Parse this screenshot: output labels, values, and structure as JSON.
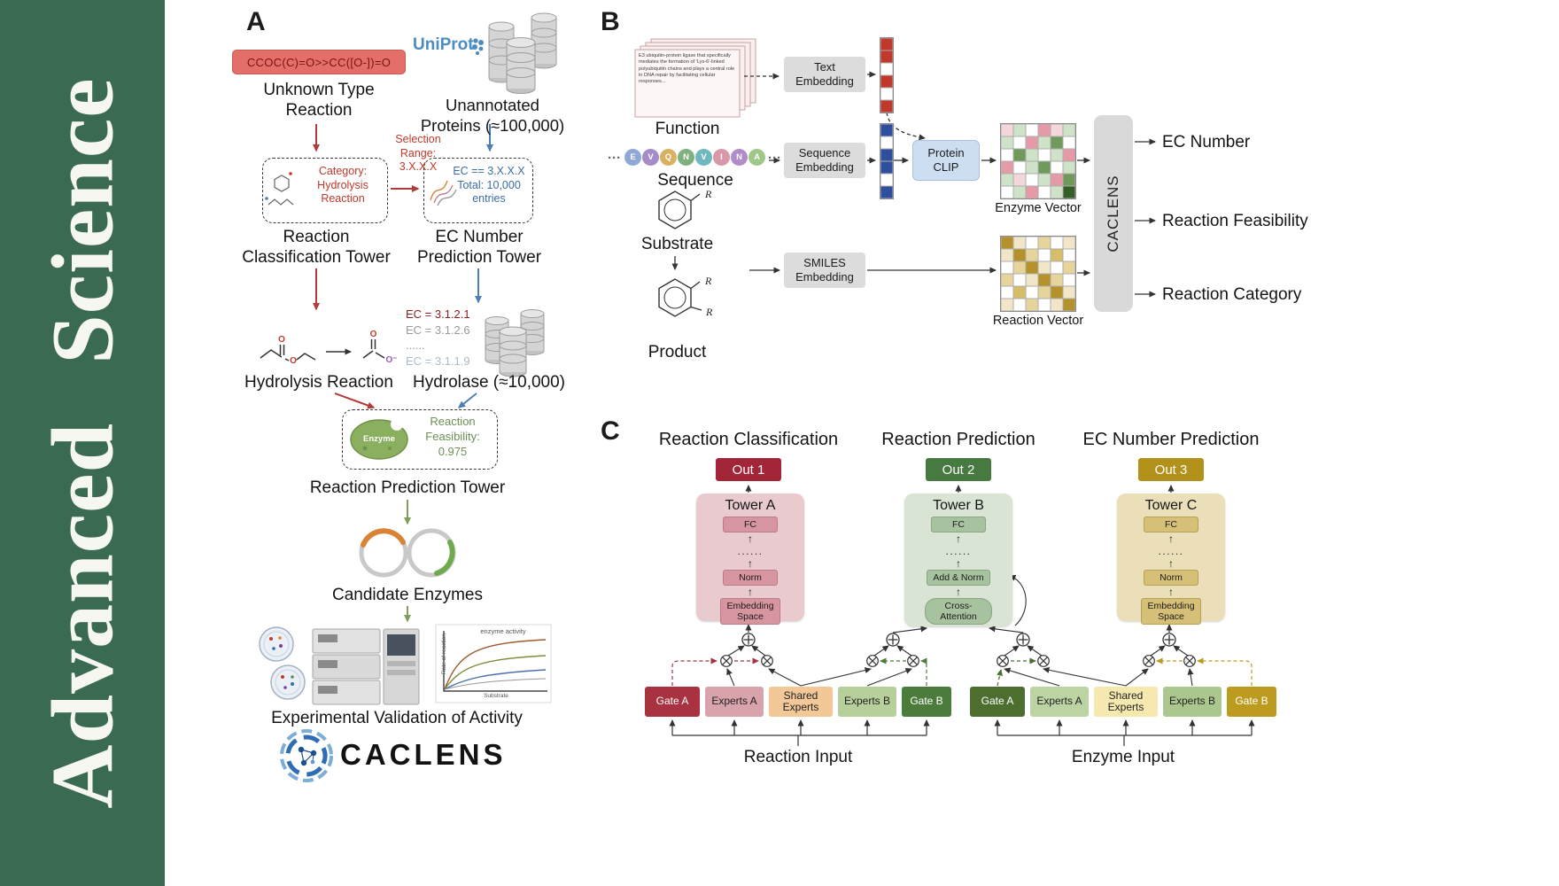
{
  "journal": {
    "name": "Advanced Science"
  },
  "panelA": {
    "label": "A",
    "smiles": "CCOC(C)=O>>CC([O-])=O",
    "unknown_reaction": "Unknown Type\nReaction",
    "uniprot": "UniProt",
    "unannotated": "Unannotated\nProteins (≈100,000)",
    "selection_range": "Selection\nRange:\n3.X.X.X",
    "category_box": "Category:\nHydrolysis\nReaction",
    "ec_range_box": "EC == 3.X.X.X\nTotal: 10,000\nentries",
    "classification_tower": "Reaction\nClassification Tower",
    "ec_tower": "EC Number\nPrediction Tower",
    "ec_list": [
      {
        "text": "EC = 3.1.2.1",
        "color": "#8f1d22"
      },
      {
        "text": "EC = 3.1.2.6",
        "color": "#9a9a9a"
      },
      {
        "text": "......",
        "color": "#9a9a9a"
      },
      {
        "text": "EC = 3.1.1.9",
        "color": "#a9bccd"
      }
    ],
    "hydrolysis": "Hydrolysis Reaction",
    "hydrolase": "Hydrolase (≈10,000)",
    "enzyme_label": "Enzyme",
    "feasibility": "Reaction\nFeasibility:\n0.975",
    "prediction_tower": "Reaction Prediction Tower",
    "candidates": "Candidate Enzymes",
    "validation": "Experimental Validation of Activity",
    "brand": "CACLENS",
    "atoms": {
      "o": "O",
      "o_minus": "O⁻"
    },
    "plot": {
      "top_label": "enzyme activity",
      "y_label": "Rate of reaction",
      "x_label": "Substrate"
    }
  },
  "panelB": {
    "label": "B",
    "function_doc": "E3 ubiquitin-protein ligase that specifically mediates the formation of 'Lys-6'-linked polyubiquitin chains and plays a central role in DNA repair by facilitating cellular responses...",
    "function_label": "Function",
    "sequence": {
      "ellipsis": "···",
      "letters": [
        "E",
        "V",
        "Q",
        "N",
        "V",
        "I",
        "N",
        "A"
      ],
      "colors": [
        "#8fa8d8",
        "#a58cc8",
        "#d8b060",
        "#7fb07f",
        "#6fb8c0",
        "#d898a8",
        "#b08cc8",
        "#9fc888"
      ]
    },
    "sequence_label": "Sequence",
    "substrate_label": "Substrate",
    "product_label": "Product",
    "r_group": "R",
    "text_embedding": "Text\nEmbedding",
    "sequence_embedding": "Sequence\nEmbedding",
    "smiles_embedding": "SMILES\nEmbedding",
    "protein_clip": "Protein\nCLIP",
    "enzyme_vector_label": "Enzyme Vector",
    "reaction_vector_label": "Reaction Vector",
    "caclens": "CACLENS",
    "outputs": [
      "EC Number",
      "Reaction Feasibility",
      "Reaction Category"
    ],
    "text_vector": [
      "#c0392b",
      "#c0392b",
      "#ffffff",
      "#c0392b",
      "#ffffff",
      "#c0392b"
    ],
    "sequence_vector": [
      "#2e4f9e",
      "#ffffff",
      "#2e4f9e",
      "#2e4f9e",
      "#ffffff",
      "#2e4f9e"
    ],
    "enzyme_matrix": [
      [
        "#f4d7db",
        "#cfe3c8",
        "#ffffff",
        "#e59aa8",
        "#f4d7db",
        "#cfe3c8"
      ],
      [
        "#cfe3c8",
        "#ffffff",
        "#e59aa8",
        "#cfe3c8",
        "#6f9a5c",
        "#ffffff"
      ],
      [
        "#ffffff",
        "#6f9a5c",
        "#cfe3c8",
        "#ffffff",
        "#cfe3c8",
        "#e59aa8"
      ],
      [
        "#e59aa8",
        "#ffffff",
        "#cfe3c8",
        "#6f9a5c",
        "#ffffff",
        "#cfe3c8"
      ],
      [
        "#cfe3c8",
        "#f4d7db",
        "#ffffff",
        "#cfe3c8",
        "#e59aa8",
        "#6f9a5c"
      ],
      [
        "#ffffff",
        "#cfe3c8",
        "#e59aa8",
        "#ffffff",
        "#cfe3c8",
        "#355e28"
      ]
    ],
    "reaction_matrix": [
      [
        "#b5912c",
        "#f1e7c8",
        "#ffffff",
        "#e6d49a",
        "#ffffff",
        "#f1e7c8"
      ],
      [
        "#f1e7c8",
        "#b5912c",
        "#e6d49a",
        "#ffffff",
        "#d5bd6a",
        "#ffffff"
      ],
      [
        "#ffffff",
        "#e6d49a",
        "#b5912c",
        "#f1e7c8",
        "#ffffff",
        "#e6d49a"
      ],
      [
        "#e6d49a",
        "#ffffff",
        "#f1e7c8",
        "#b5912c",
        "#e6d49a",
        "#ffffff"
      ],
      [
        "#ffffff",
        "#d5bd6a",
        "#ffffff",
        "#e6d49a",
        "#b5912c",
        "#f1e7c8"
      ],
      [
        "#f1e7c8",
        "#ffffff",
        "#e6d49a",
        "#ffffff",
        "#f1e7c8",
        "#b5912c"
      ]
    ]
  },
  "panelC": {
    "label": "C",
    "towers": [
      {
        "title": "Reaction Classification",
        "out": "Out 1",
        "out_bg": "#a32638",
        "name": "Tower A",
        "bg": "#e8cacf",
        "block_bg": "#d795a0",
        "block_border": "#bb7b87",
        "blocks": [
          {
            "label": "FC"
          },
          {
            "label": "......",
            "type": "dots"
          },
          {
            "label": "Norm"
          },
          {
            "label": "Embedding\nSpace",
            "type": "tall"
          }
        ]
      },
      {
        "title": "Reaction Prediction",
        "out": "Out 2",
        "out_bg": "#477a41",
        "name": "Tower B",
        "bg": "#d9e4d4",
        "block_bg": "#a6c29e",
        "block_border": "#88a57f",
        "blocks": [
          {
            "label": "FC"
          },
          {
            "label": "......",
            "type": "dots"
          },
          {
            "label": "Add & Norm"
          },
          {
            "label": "Cross-\nAttention",
            "type": "oval"
          }
        ]
      },
      {
        "title": "EC Number Prediction",
        "out": "Out 3",
        "out_bg": "#b3921c",
        "name": "Tower C",
        "bg": "#eadfb9",
        "block_bg": "#d6bf76",
        "block_border": "#b6a156",
        "blocks": [
          {
            "label": "FC"
          },
          {
            "label": "......",
            "type": "dots"
          },
          {
            "label": "Norm"
          },
          {
            "label": "Embedding\nSpace",
            "type": "tall"
          }
        ]
      }
    ],
    "expert_groups": [
      {
        "input_label": "Reaction Input",
        "boxes": [
          {
            "label": "Gate A",
            "bg": "#a83240",
            "fg": "#ffffff"
          },
          {
            "label": "Experts A",
            "bg": "#d9a3ab",
            "fg": "#222222"
          },
          {
            "label": "Shared\nExperts",
            "bg": "#f2c898",
            "fg": "#222222"
          },
          {
            "label": "Experts B",
            "bg": "#b7cf9b",
            "fg": "#222222"
          },
          {
            "label": "Gate B",
            "bg": "#4c7c3c",
            "fg": "#ffffff"
          }
        ]
      },
      {
        "input_label": "Enzyme Input",
        "boxes": [
          {
            "label": "Gate A",
            "bg": "#4c6e2f",
            "fg": "#ffffff"
          },
          {
            "label": "Experts A",
            "bg": "#bcd4a4",
            "fg": "#222222"
          },
          {
            "label": "Shared\nExperts",
            "bg": "#f5e9b0",
            "fg": "#222222"
          },
          {
            "label": "Experts B",
            "bg": "#aac88e",
            "fg": "#222222"
          },
          {
            "label": "Gate B",
            "bg": "#bd9b1e",
            "fg": "#ffffff"
          }
        ]
      }
    ]
  }
}
